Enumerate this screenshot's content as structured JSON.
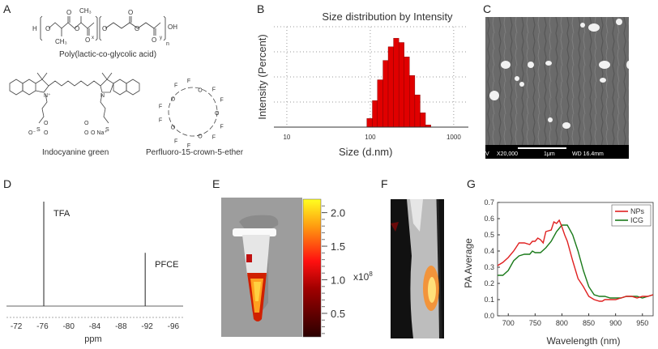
{
  "panels": {
    "A": {
      "label": "A",
      "plga_caption": "Poly(lactic-co-glycolic acid)",
      "icg_caption": "Indocyanine green",
      "pfce_caption": "Perfluoro-15-crown-5-ether",
      "plga_atoms": {
        "H": "H",
        "O": "O",
        "CH3": "CH₃",
        "OH": "OH",
        "x": "x",
        "y": "y",
        "n": "n"
      },
      "icg_atoms": {
        "N_plus": "N⁺",
        "N": "N",
        "S": "S",
        "O": "O",
        "O_minus": "O⁻",
        "ONa": "O Na⁺"
      },
      "pfce_atoms": {
        "F": "F",
        "O": "O"
      }
    },
    "B": {
      "label": "B"
    },
    "C": {
      "label": "C",
      "sem_bar": {
        "voltage_fragment": "V",
        "magnification": "X20,000",
        "scale": "1μm",
        "wd": "WD 16.4mm"
      }
    },
    "D": {
      "label": "D"
    },
    "E": {
      "label": "E",
      "colorbar_ticks": [
        "2.0",
        "1.5",
        "1.0",
        "0.5"
      ],
      "multiplier": "x10",
      "multiplier_exp": "8"
    },
    "F": {
      "label": "F"
    },
    "G": {
      "label": "G"
    }
  },
  "chart_data": [
    {
      "id": "B",
      "type": "bar",
      "title": "Size distribution by Intensity",
      "xlabel": "Size (d.nm)",
      "ylabel": "Intensity (Percent)",
      "xscale": "log",
      "xlim": [
        7,
        1500
      ],
      "xticks": [
        10,
        100,
        1000
      ],
      "xtick_labels": [
        "10",
        "100",
        "1000"
      ],
      "grid": true,
      "bins_nm": [
        91,
        106,
        122,
        142,
        164,
        190,
        220,
        255,
        295,
        342,
        396,
        459
      ],
      "values": [
        1.2,
        3.7,
        6.6,
        9.3,
        11.2,
        12.4,
        11.8,
        9.8,
        7.2,
        4.5,
        2.0,
        0.3
      ],
      "ylim": [
        0,
        14
      ],
      "color": "#e00000"
    },
    {
      "id": "D",
      "type": "line",
      "xlabel": "ppm",
      "xlim": [
        -70.5,
        -97.5
      ],
      "xticks": [
        -72,
        -76,
        -80,
        -84,
        -88,
        -92,
        -96
      ],
      "xtick_labels": [
        "-72",
        "-76",
        "-80",
        "-84",
        "-88",
        "-92",
        "-96"
      ],
      "peaks": [
        {
          "x": -76.2,
          "height": 1.0,
          "label": "TFA"
        },
        {
          "x": -91.7,
          "height": 0.51,
          "label": "PFCE"
        }
      ]
    },
    {
      "id": "G",
      "type": "line",
      "xlabel": "Wavelength (nm)",
      "ylabel": "PA Average",
      "xlim": [
        680,
        970
      ],
      "ylim": [
        0,
        0.7
      ],
      "xticks": [
        700,
        750,
        800,
        850,
        900,
        950
      ],
      "yticks": [
        0.0,
        0.1,
        0.2,
        0.3,
        0.4,
        0.5,
        0.6,
        0.7
      ],
      "xtick_labels": [
        "700",
        "750",
        "800",
        "850",
        "900",
        "950"
      ],
      "ytick_labels": [
        "0.0",
        "0.1",
        "0.2",
        "0.3",
        "0.4",
        "0.5",
        "0.6",
        "0.7"
      ],
      "legend": "top-right",
      "series": [
        {
          "name": "NPs",
          "color": "#e02020",
          "x": [
            680,
            690,
            700,
            710,
            720,
            730,
            740,
            745,
            750,
            755,
            760,
            765,
            770,
            780,
            785,
            790,
            795,
            800,
            805,
            810,
            820,
            830,
            840,
            850,
            860,
            870,
            875,
            880,
            890,
            900,
            910,
            920,
            930,
            940,
            950,
            960,
            970
          ],
          "y": [
            0.31,
            0.33,
            0.36,
            0.4,
            0.45,
            0.45,
            0.44,
            0.46,
            0.46,
            0.48,
            0.47,
            0.45,
            0.52,
            0.53,
            0.58,
            0.57,
            0.59,
            0.55,
            0.5,
            0.46,
            0.34,
            0.23,
            0.18,
            0.12,
            0.1,
            0.09,
            0.09,
            0.1,
            0.1,
            0.1,
            0.11,
            0.12,
            0.12,
            0.11,
            0.12,
            0.12,
            0.13
          ]
        },
        {
          "name": "ICG",
          "color": "#1a7a1a",
          "x": [
            680,
            690,
            700,
            710,
            720,
            730,
            740,
            745,
            750,
            755,
            760,
            770,
            780,
            790,
            800,
            805,
            810,
            820,
            830,
            840,
            850,
            860,
            870,
            880,
            890,
            900,
            910,
            920,
            930,
            940,
            950,
            960,
            970
          ],
          "y": [
            0.25,
            0.25,
            0.28,
            0.34,
            0.37,
            0.38,
            0.38,
            0.4,
            0.39,
            0.39,
            0.39,
            0.42,
            0.46,
            0.52,
            0.56,
            0.56,
            0.56,
            0.5,
            0.4,
            0.28,
            0.18,
            0.13,
            0.12,
            0.12,
            0.11,
            0.11,
            0.11,
            0.12,
            0.12,
            0.12,
            0.11,
            0.12,
            0.13
          ]
        }
      ]
    }
  ]
}
